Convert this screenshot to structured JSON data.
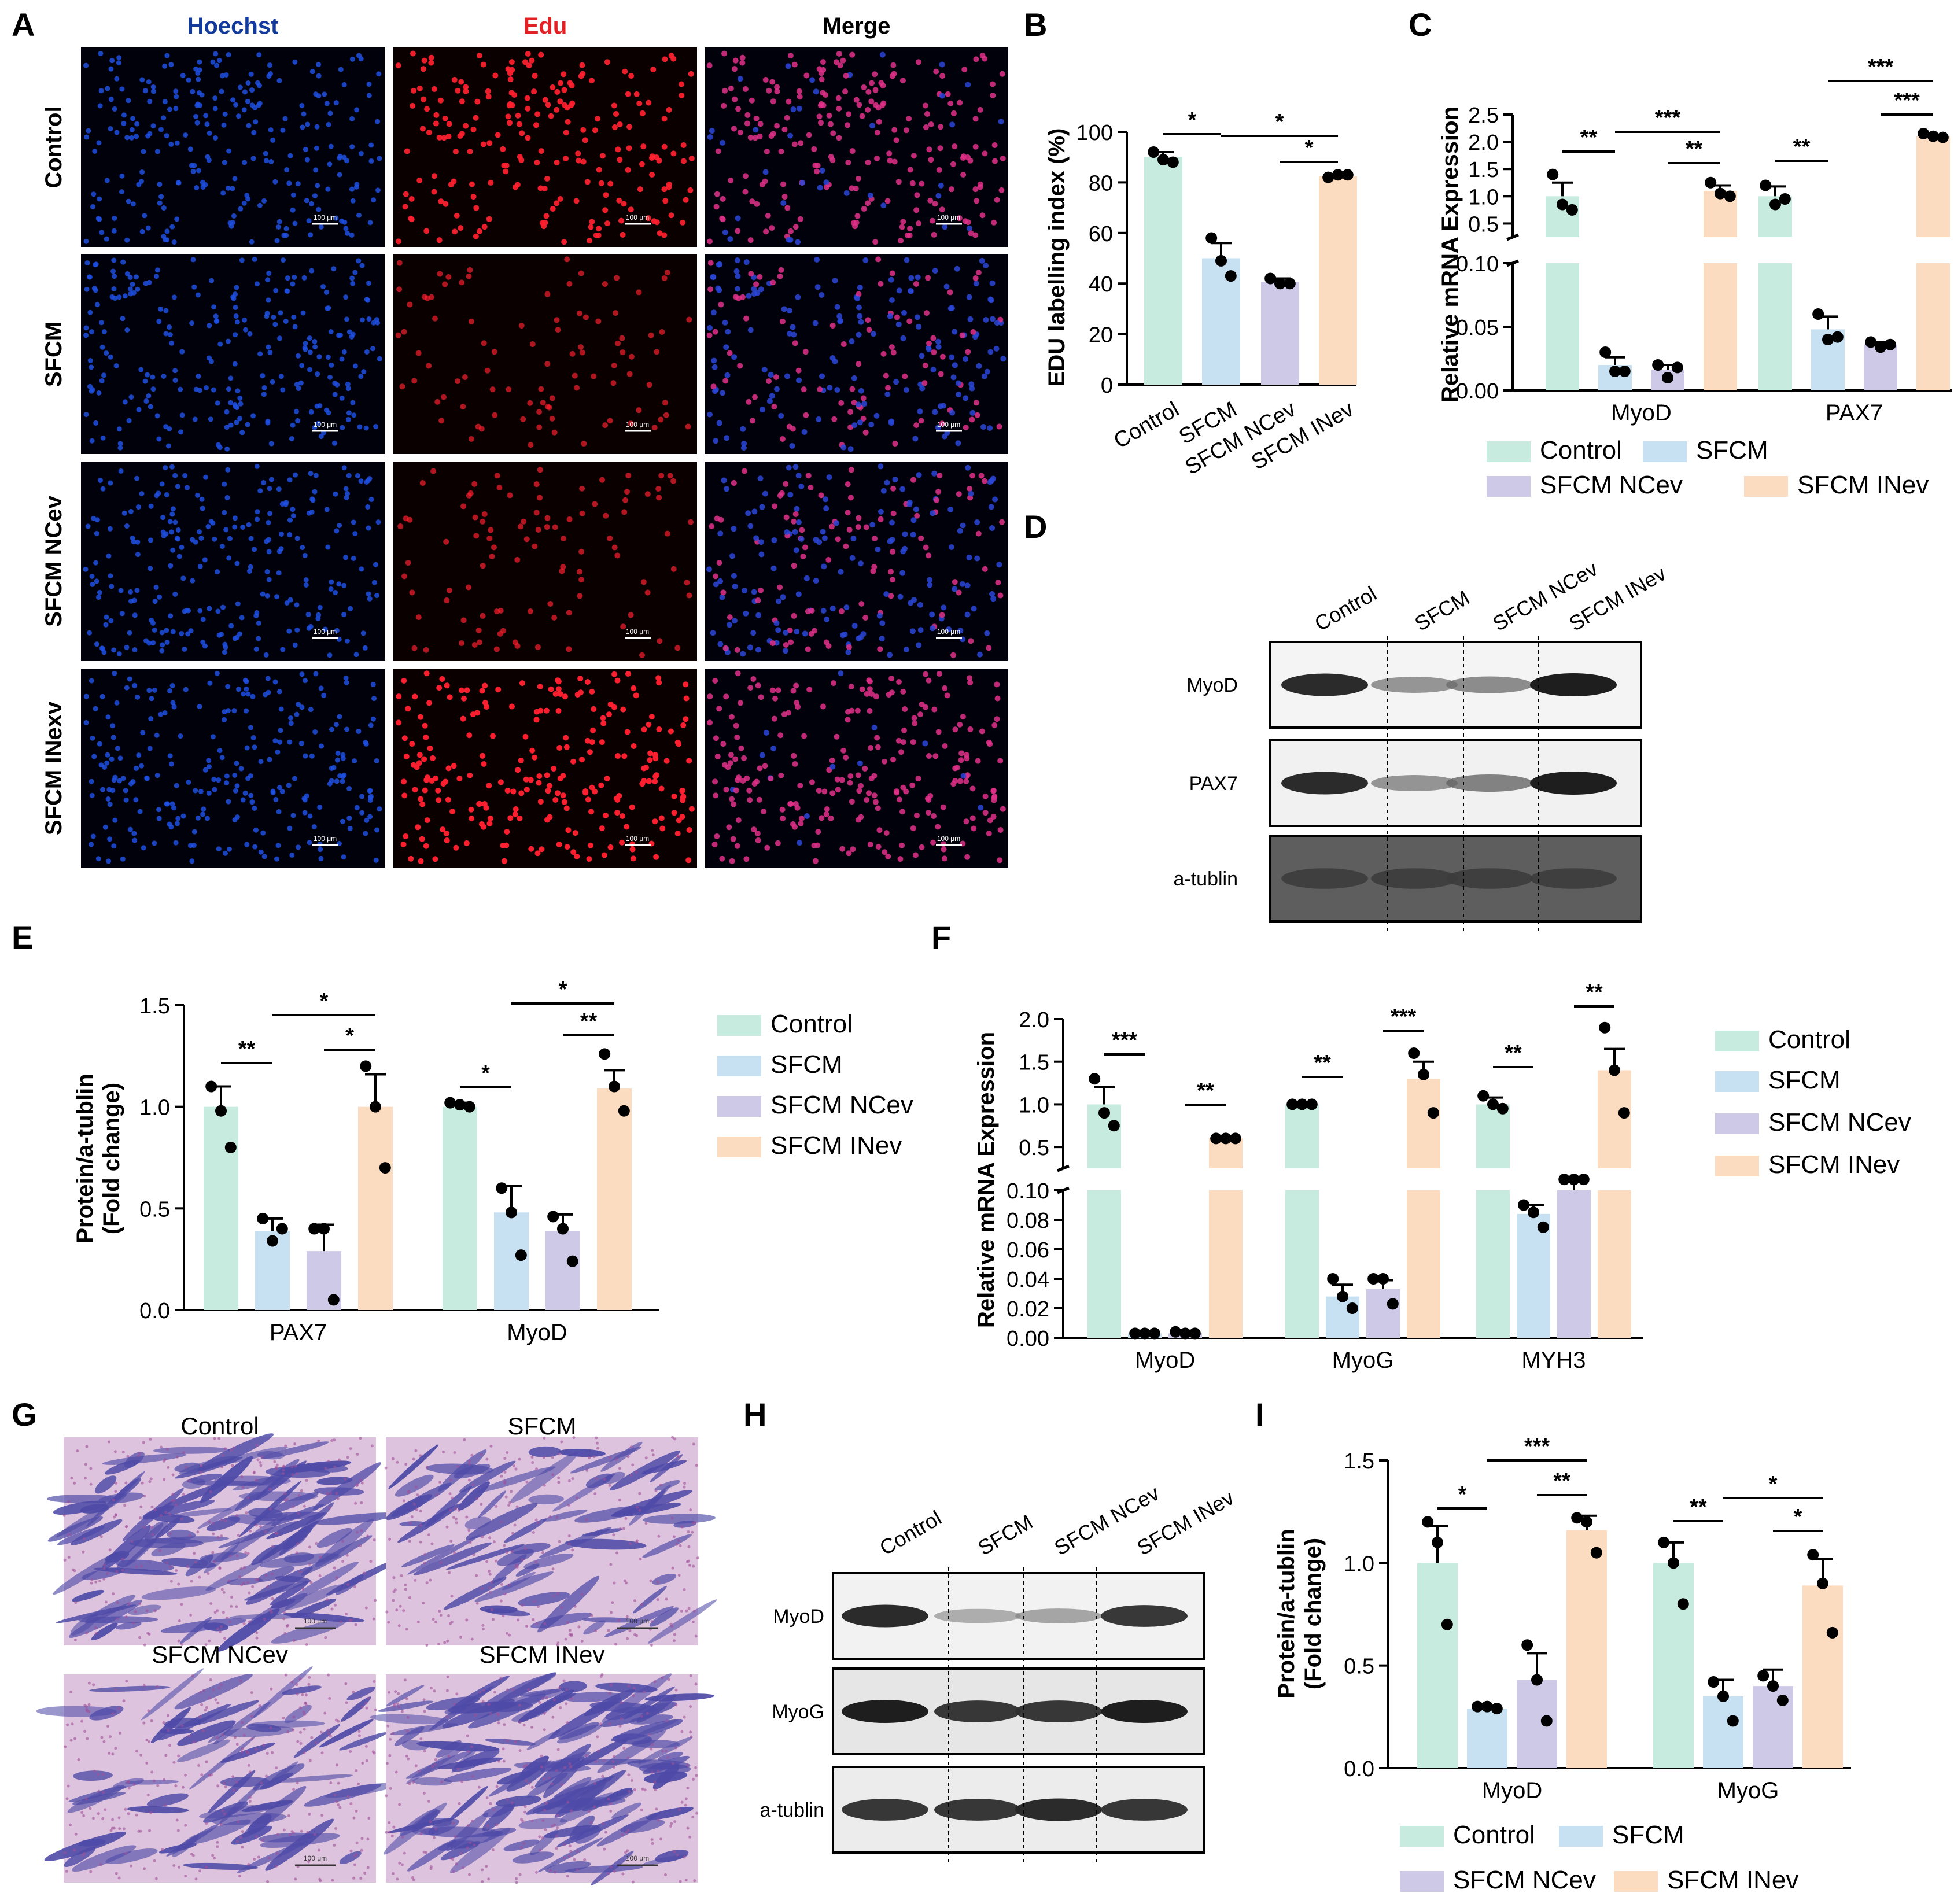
{
  "colors": {
    "control": "#c8ebdf",
    "sfcm": "#c7e1f3",
    "ncev": "#cfc9e8",
    "inev": "#fcdcc1",
    "hoechst": "#123a9c",
    "edu": "#e32124",
    "merge": "#000000",
    "he_bg": "#ddc3dd",
    "he_fiber": "#4e4aa7"
  },
  "panel_letters": [
    "A",
    "B",
    "C",
    "D",
    "E",
    "F",
    "G",
    "H",
    "I"
  ],
  "panel_a": {
    "columns": [
      "Hoechst",
      "Edu",
      "Merge"
    ],
    "rows": [
      "Control",
      "SFCM",
      "SFCM NCev",
      "SFCM INexv"
    ],
    "scale_label": "100 μm",
    "edu_density": [
      0.85,
      0.35,
      0.38,
      0.95
    ]
  },
  "panel_d": {
    "lanes": [
      "Control",
      "SFCM",
      "SFCM NCev",
      "SFCM INev"
    ],
    "rows": [
      "MyoD",
      "PAX7",
      "a-tublin"
    ],
    "band_intensity": [
      [
        0.95,
        0.45,
        0.5,
        1.0
      ],
      [
        0.95,
        0.45,
        0.55,
        1.0
      ],
      [
        0.8,
        0.8,
        0.8,
        0.8
      ]
    ]
  },
  "panel_g": {
    "labels": [
      "Control",
      "SFCM",
      "SFCM NCev",
      "SFCM INev"
    ],
    "scale_label": "100 μm",
    "fiber_density": [
      0.95,
      0.55,
      0.55,
      1.0
    ]
  },
  "panel_h": {
    "lanes": [
      "Control",
      "SFCM",
      "SFCM NCev",
      "SFCM INev"
    ],
    "rows": [
      "MyoD",
      "MyoG",
      "a-tublin"
    ],
    "band_intensity": [
      [
        0.95,
        0.3,
        0.35,
        0.9
      ],
      [
        1.0,
        0.9,
        0.9,
        1.0
      ],
      [
        0.9,
        0.9,
        0.95,
        0.9
      ]
    ]
  },
  "chart_data": [
    {
      "id": "B",
      "type": "bar",
      "ylabel": "EDU labelling index  (%)",
      "categories": [
        "Control",
        "SFCM",
        "SFCM NCev",
        "SFCM INev"
      ],
      "values": [
        90,
        50,
        40.5,
        82.5
      ],
      "errors": [
        2,
        6,
        1.5,
        0.8
      ],
      "points": [
        [
          92,
          89,
          88
        ],
        [
          58,
          49,
          43
        ],
        [
          42,
          40,
          40
        ],
        [
          82,
          83,
          83
        ]
      ],
      "ylim": [
        0,
        100
      ],
      "yticks": [
        0,
        20,
        40,
        60,
        80,
        100
      ],
      "significance": [
        {
          "from": 0,
          "to": 1,
          "label": "*"
        },
        {
          "from": 1,
          "to": 3,
          "label": "*"
        },
        {
          "from": 2,
          "to": 3,
          "label": "*"
        }
      ]
    },
    {
      "id": "C",
      "type": "bar",
      "ylabel": "Relative mRNA Expression",
      "axis": "broken",
      "lower_ticks": [
        "0.00",
        "0.05",
        "0.10"
      ],
      "upper_ticks": [
        "0.5",
        "1.0",
        "1.5",
        "2.0",
        "2.5"
      ],
      "groups": [
        "MyoD",
        "PAX7"
      ],
      "series": [
        {
          "name": "Control",
          "values": [
            1.0,
            1.0
          ],
          "errors": [
            0.25,
            0.18
          ],
          "points": [
            [
              1.4,
              0.85,
              0.75
            ],
            [
              1.2,
              0.85,
              0.95
            ]
          ]
        },
        {
          "name": "SFCM",
          "values": [
            0.02,
            0.048
          ],
          "errors": [
            0.006,
            0.01
          ],
          "points": [
            [
              0.03,
              0.015,
              0.015
            ],
            [
              0.06,
              0.04,
              0.042
            ]
          ]
        },
        {
          "name": "SFCM NCev",
          "values": [
            0.016,
            0.036
          ],
          "errors": [
            0.004,
            0.002
          ],
          "points": [
            [
              0.02,
              0.01,
              0.018
            ],
            [
              0.038,
              0.034,
              0.036
            ]
          ]
        },
        {
          "name": "SFCM INev",
          "values": [
            1.1,
            2.1
          ],
          "errors": [
            0.1,
            0.03
          ],
          "points": [
            [
              1.25,
              1.05,
              1.0
            ],
            [
              2.15,
              2.1,
              2.08
            ]
          ]
        }
      ],
      "significance": [
        {
          "group": 0,
          "from": 0,
          "to": 1,
          "label": "**",
          "level": 0
        },
        {
          "group": 0,
          "from": 1,
          "to": 3,
          "label": "***",
          "level": 1
        },
        {
          "group": 0,
          "from": 2,
          "to": 3,
          "label": "**",
          "level": 0
        },
        {
          "group": 1,
          "from": 0,
          "to": 1,
          "label": "**",
          "level": 0
        },
        {
          "group": 1,
          "from": 1,
          "to": 3,
          "label": "***",
          "level": 2
        },
        {
          "group": 1,
          "from": 2,
          "to": 3,
          "label": "***",
          "level": 1
        }
      ]
    },
    {
      "id": "E",
      "type": "bar",
      "ylabel": "Protein/a-tublin",
      "ylabel2": "(Fold change)",
      "groups": [
        "PAX7",
        "MyoD"
      ],
      "ylim": [
        0,
        1.5
      ],
      "yticks": [
        "0.0",
        "0.5",
        "1.0",
        "1.5"
      ],
      "series": [
        {
          "name": "Control",
          "values": [
            1.0,
            1.0
          ],
          "errors": [
            0.1,
            0.02
          ],
          "points": [
            [
              1.1,
              0.98,
              0.8
            ],
            [
              1.02,
              1.01,
              1.0
            ]
          ]
        },
        {
          "name": "SFCM",
          "values": [
            0.39,
            0.48
          ],
          "errors": [
            0.06,
            0.13
          ],
          "points": [
            [
              0.45,
              0.34,
              0.4
            ],
            [
              0.6,
              0.48,
              0.27
            ]
          ]
        },
        {
          "name": "SFCM NCev",
          "values": [
            0.29,
            0.39
          ],
          "errors": [
            0.13,
            0.08
          ],
          "points": [
            [
              0.4,
              0.4,
              0.05
            ],
            [
              0.46,
              0.4,
              0.24
            ]
          ]
        },
        {
          "name": "SFCM INev",
          "values": [
            1.0,
            1.09
          ],
          "errors": [
            0.16,
            0.09
          ],
          "points": [
            [
              1.2,
              1.0,
              0.7
            ],
            [
              1.26,
              1.1,
              0.98
            ]
          ]
        }
      ],
      "significance": [
        {
          "group": 0,
          "from": 0,
          "to": 1,
          "label": "**",
          "level": 0
        },
        {
          "group": 0,
          "from": 1,
          "to": 3,
          "label": "*",
          "level": 2
        },
        {
          "group": 0,
          "from": 2,
          "to": 3,
          "label": "*",
          "level": 1
        },
        {
          "group": 1,
          "from": 0,
          "to": 1,
          "label": "*",
          "level": 0
        },
        {
          "group": 1,
          "from": 1,
          "to": 3,
          "label": "*",
          "level": 2
        },
        {
          "group": 1,
          "from": 2,
          "to": 3,
          "label": "**",
          "level": 1
        }
      ]
    },
    {
      "id": "F",
      "type": "bar",
      "ylabel": "Relative mRNA Expression",
      "axis": "broken",
      "lower_ticks": [
        "0.00",
        "0.02",
        "0.04",
        "0.06",
        "0.08",
        "0.10"
      ],
      "upper_ticks": [
        "0.5",
        "1.0",
        "1.5",
        "2.0"
      ],
      "groups": [
        "MyoD",
        "MyoG",
        "MYH3"
      ],
      "series": [
        {
          "name": "Control",
          "values": [
            1.0,
            1.0,
            1.0
          ],
          "errors": [
            0.2,
            0.01,
            0.08
          ],
          "points": [
            [
              1.3,
              0.9,
              0.75
            ],
            [
              1.0,
              1.0,
              1.0
            ],
            [
              1.1,
              1.0,
              0.95
            ]
          ]
        },
        {
          "name": "SFCM",
          "values": [
            0.003,
            0.028,
            0.084
          ],
          "errors": [
            0.0005,
            0.008,
            0.006
          ],
          "points": [
            [
              0.003,
              0.003,
              0.003
            ],
            [
              0.04,
              0.028,
              0.02
            ],
            [
              0.09,
              0.085,
              0.075
            ]
          ]
        },
        {
          "name": "SFCM NCev",
          "values": [
            0.003,
            0.033,
            0.1
          ],
          "errors": [
            0.0005,
            0.006,
            0.002
          ],
          "points": [
            [
              0.004,
              0.003,
              0.003
            ],
            [
              0.04,
              0.04,
              0.023
            ],
            [
              0.12,
              0.12,
              0.12
            ]
          ]
        },
        {
          "name": "SFCM INev",
          "values": [
            0.6,
            1.3,
            1.4
          ],
          "errors": [
            0.02,
            0.2,
            0.25
          ],
          "points": [
            [
              0.6,
              0.6,
              0.6
            ],
            [
              1.6,
              1.35,
              0.9
            ],
            [
              1.9,
              1.4,
              0.9
            ]
          ]
        }
      ],
      "significance": [
        {
          "group": 0,
          "from": 0,
          "to": 1,
          "label": "***",
          "level": 0
        },
        {
          "group": 0,
          "from": 2,
          "to": 3,
          "label": "**",
          "level": -1
        },
        {
          "group": 1,
          "from": 0,
          "to": 1,
          "label": "**",
          "level": 0
        },
        {
          "group": 1,
          "from": 2,
          "to": 3,
          "label": "***",
          "level": 1
        },
        {
          "group": 2,
          "from": 0,
          "to": 1,
          "label": "**",
          "level": 0
        },
        {
          "group": 2,
          "from": 2,
          "to": 3,
          "label": "**",
          "level": 1
        }
      ]
    },
    {
      "id": "I",
      "type": "bar",
      "ylabel": "Protein/a-tublin",
      "ylabel2": "(Fold change)",
      "groups": [
        "MyoD",
        "MyoG"
      ],
      "ylim": [
        0,
        1.5
      ],
      "yticks": [
        "0.0",
        "0.5",
        "1.0",
        "1.5"
      ],
      "series": [
        {
          "name": "Control",
          "values": [
            1.0,
            1.0
          ],
          "errors": [
            0.18,
            0.1
          ],
          "points": [
            [
              1.2,
              1.1,
              0.7
            ],
            [
              1.1,
              1.0,
              0.8
            ]
          ]
        },
        {
          "name": "SFCM",
          "values": [
            0.29,
            0.35
          ],
          "errors": [
            0.01,
            0.08
          ],
          "points": [
            [
              0.3,
              0.3,
              0.29
            ],
            [
              0.42,
              0.35,
              0.23
            ]
          ]
        },
        {
          "name": "SFCM NCev",
          "values": [
            0.43,
            0.4
          ],
          "errors": [
            0.13,
            0.08
          ],
          "points": [
            [
              0.6,
              0.43,
              0.23
            ],
            [
              0.45,
              0.4,
              0.33
            ]
          ]
        },
        {
          "name": "SFCM INev",
          "values": [
            1.16,
            0.89
          ],
          "errors": [
            0.07,
            0.13
          ],
          "points": [
            [
              1.22,
              1.2,
              1.05
            ],
            [
              1.04,
              0.9,
              0.66
            ]
          ]
        }
      ],
      "significance": [
        {
          "group": 0,
          "from": 0,
          "to": 1,
          "label": "*",
          "level": 0
        },
        {
          "group": 0,
          "from": 1,
          "to": 3,
          "label": "***",
          "level": 2
        },
        {
          "group": 0,
          "from": 2,
          "to": 3,
          "label": "**",
          "level": 1
        },
        {
          "group": 1,
          "from": 0,
          "to": 1,
          "label": "**",
          "level": 0
        },
        {
          "group": 1,
          "from": 1,
          "to": 3,
          "label": "*",
          "level": 2
        },
        {
          "group": 1,
          "from": 2,
          "to": 3,
          "label": "*",
          "level": 1
        }
      ]
    }
  ]
}
